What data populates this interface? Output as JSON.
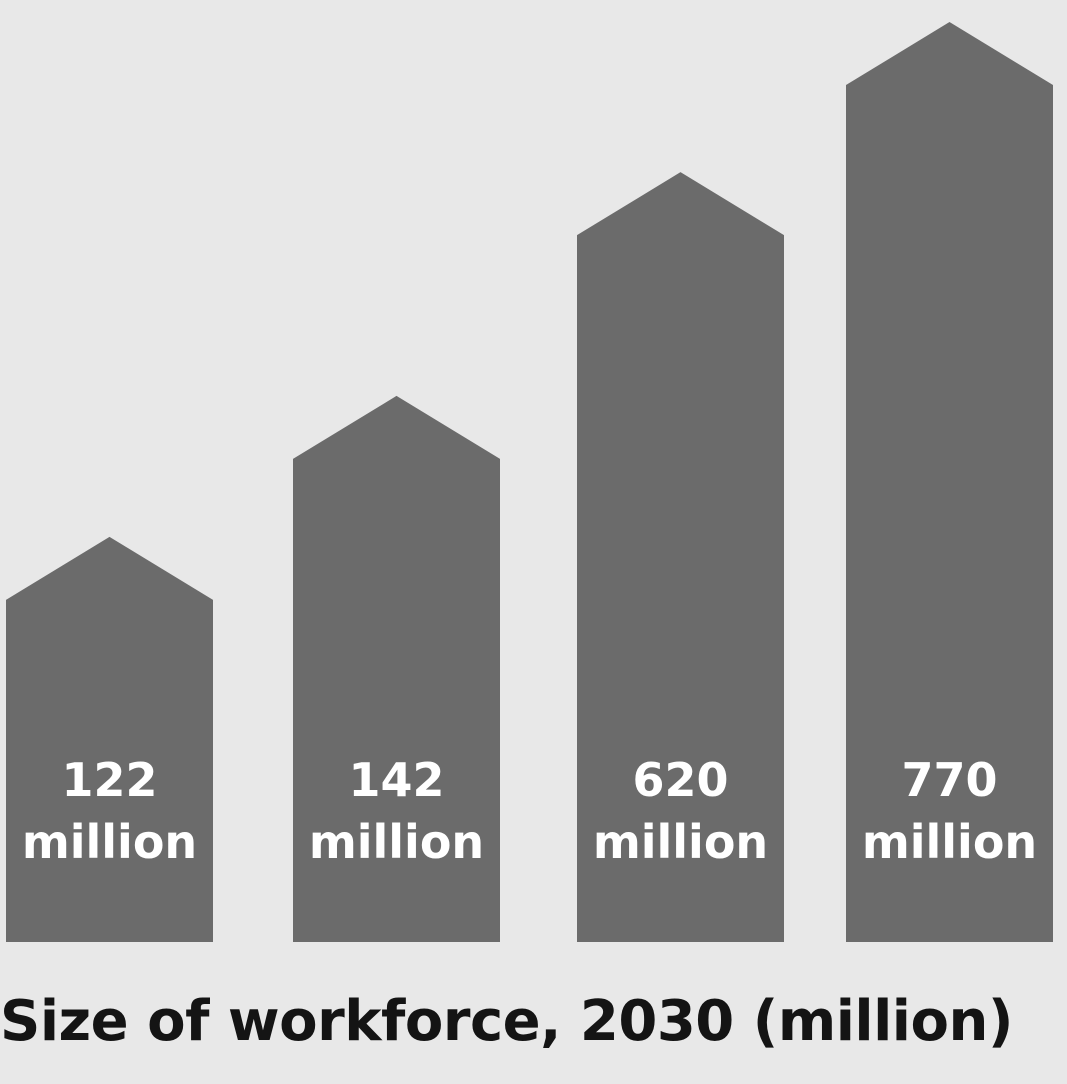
{
  "chart_data": {
    "type": "bar",
    "title": "Size of workforce, 2030 (million)",
    "categories": [
      "",
      "",
      "",
      ""
    ],
    "values": [
      122,
      142,
      620,
      770
    ],
    "data_labels": [
      [
        "122",
        "million"
      ],
      [
        "142",
        "million"
      ],
      [
        "620",
        "million"
      ],
      [
        "770",
        "million"
      ]
    ],
    "xlabel": "",
    "ylabel": "",
    "grid": false,
    "legend": "none",
    "bar_style": "arrow-topped columns",
    "bar_color": "#6b6b6b",
    "label_color": "#ffffff",
    "background_color": "#e8e8e8"
  }
}
